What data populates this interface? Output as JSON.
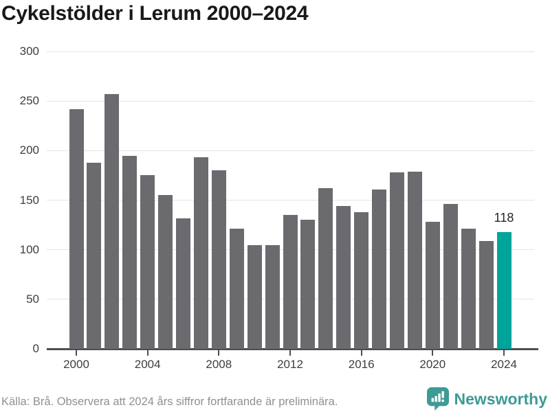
{
  "title": "Cykelstölder i Lerum 2000–2024",
  "chart_data": {
    "type": "bar",
    "title": "Cykelstölder i Lerum 2000–2024",
    "categories": [
      2000,
      2001,
      2002,
      2003,
      2004,
      2005,
      2006,
      2007,
      2008,
      2009,
      2010,
      2011,
      2012,
      2013,
      2014,
      2015,
      2016,
      2017,
      2018,
      2019,
      2020,
      2021,
      2022,
      2023,
      2024
    ],
    "values": [
      242,
      188,
      257,
      195,
      175,
      155,
      132,
      193,
      180,
      121,
      105,
      105,
      135,
      130,
      162,
      144,
      138,
      161,
      178,
      179,
      128,
      146,
      121,
      109,
      118
    ],
    "highlight_index": 24,
    "annotation": {
      "text": "118",
      "category": 2024
    },
    "yticks": [
      0,
      50,
      100,
      150,
      200,
      250,
      300
    ],
    "xticks": [
      2000,
      2004,
      2008,
      2012,
      2016,
      2020,
      2024
    ],
    "ylim": [
      0,
      300
    ],
    "grid": "horizontal",
    "legend": "none",
    "colors": {
      "bar": "#6b6a6f",
      "highlight": "#00a49a",
      "gridline": "#e4e4e4",
      "axis": "#4d4d4d"
    }
  },
  "footer": {
    "source_note": "Källa: Brå. Observera att 2024 års siffror fortfarande är preliminära."
  },
  "logo": {
    "text": "Newsworthy",
    "color": "#3e9a94",
    "icon": "newsworthy-speech-bubble-chart-icon"
  }
}
